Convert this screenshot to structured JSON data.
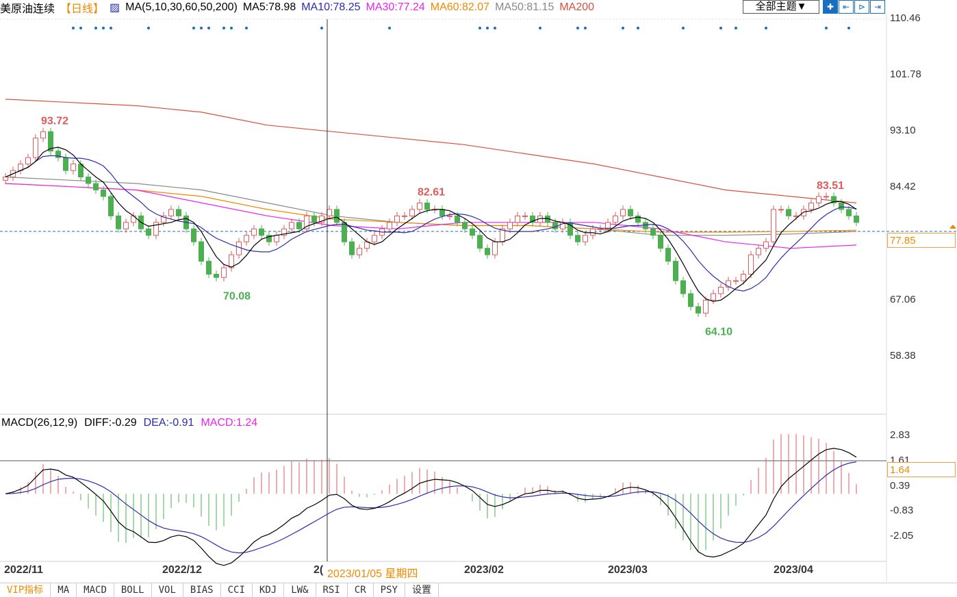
{
  "header": {
    "title": "美原油连续",
    "period": "【日线】",
    "ma_label": "MA(5,10,30,60,50,200)",
    "ma5": "MA5:78.98",
    "ma10": "MA10:78.25",
    "ma30": "MA30:77.24",
    "ma60": "MA60:82.07",
    "ma50": "MA50:81.15",
    "ma200": "MA200"
  },
  "toolbar": {
    "theme": "全部主题▼",
    "buttons": [
      "✚",
      "⇤",
      "⊳",
      "⇥"
    ]
  },
  "colors": {
    "up": "#e05a5a",
    "down": "#4caf50",
    "ma5": "#000000",
    "ma10": "#2b2bb0",
    "ma30": "#ee22ee",
    "ma60": "#f08a00",
    "ma50": "#888888",
    "ma200": "#d9503c",
    "signal": "#1a6ec0"
  },
  "price_axis": {
    "labels": [
      "110.46",
      "101.78",
      "93.10",
      "84.42",
      "67.06",
      "58.38"
    ],
    "values": [
      110.46,
      101.78,
      93.1,
      84.42,
      67.06,
      58.38
    ],
    "current": "77.85"
  },
  "macd_header": {
    "label": "MACD(26,12,9)",
    "diff": "DIFF:-0.29",
    "dea": "DEA:-0.91",
    "macd": "MACD:1.24"
  },
  "macd_axis": {
    "labels": [
      "2.83",
      "1.61",
      "0.39",
      "-0.83",
      "-2.05"
    ],
    "values": [
      2.83,
      1.61,
      0.39,
      -0.83,
      -2.05
    ],
    "current": "1.64"
  },
  "x_axis": {
    "labels": [
      "2022/11",
      "2022/12",
      "2(",
      "2023/02",
      "2023/03",
      "2023/04"
    ],
    "crosshair_label": "2023/01/05 星期四"
  },
  "annotations": [
    {
      "text": "93.72",
      "i": 4,
      "type": "high"
    },
    {
      "text": "70.08",
      "i": 28,
      "type": "low"
    },
    {
      "text": "82.61",
      "i": 54,
      "type": "high"
    },
    {
      "text": "64.10",
      "i": 92,
      "type": "low"
    },
    {
      "text": "83.51",
      "i": 107,
      "type": "high"
    }
  ],
  "tabs": [
    "VIP指标",
    "MA",
    "MACD",
    "BOLL",
    "VOL",
    "BIAS",
    "CCI",
    "KDJ",
    "LW&",
    "RSI",
    "CR",
    "PSY",
    "设置"
  ],
  "chart_data": {
    "type": "candlestick",
    "ylim": [
      52,
      112
    ],
    "closes": [
      86,
      87,
      88,
      89,
      92,
      93,
      90,
      89,
      87,
      88,
      86,
      85,
      84,
      83,
      80,
      78,
      79,
      80,
      78,
      77,
      79,
      80,
      81,
      80,
      78,
      76,
      73,
      71,
      70.5,
      72,
      74,
      76,
      77,
      78,
      77,
      76,
      77,
      78,
      79,
      78,
      80,
      79,
      80,
      81,
      79,
      76,
      74,
      75,
      76,
      77,
      78,
      79,
      80,
      80,
      81,
      82,
      81,
      81,
      80,
      80,
      79,
      78,
      77,
      75,
      74,
      76,
      78,
      79,
      80,
      80,
      79,
      80,
      79,
      78,
      79,
      77,
      76,
      77,
      78,
      78,
      79,
      80,
      81,
      80,
      79,
      78,
      77,
      75,
      73,
      70,
      68,
      66,
      65,
      67,
      68,
      69,
      70,
      70,
      71,
      74,
      75,
      76,
      81,
      81,
      80,
      80,
      81,
      82,
      83,
      83,
      82,
      81,
      80,
      79
    ],
    "ma30": [
      85,
      84.5,
      84,
      82,
      80,
      78.5,
      78,
      79,
      79,
      79,
      78,
      76,
      75,
      75.5
    ],
    "ma60": [
      85,
      84.5,
      84,
      83,
      81,
      79.5,
      79,
      78.5,
      78.5,
      78,
      77.5,
      77.5,
      77.6,
      77.8
    ],
    "ma50": [
      86,
      85.5,
      85,
      84,
      82,
      80,
      79,
      78.5,
      78.5,
      78,
      77,
      77,
      77.2,
      77.6
    ],
    "ma200": [
      98,
      97.5,
      97,
      96,
      94,
      93,
      92,
      91,
      89.5,
      88,
      86,
      84,
      83,
      82
    ],
    "signal_days": [
      9,
      10,
      12,
      13,
      14,
      19,
      25,
      26,
      27,
      29,
      30,
      32,
      42,
      51,
      63,
      64,
      65,
      71,
      76,
      77,
      82,
      84,
      90,
      95,
      97,
      101,
      109,
      112
    ]
  }
}
